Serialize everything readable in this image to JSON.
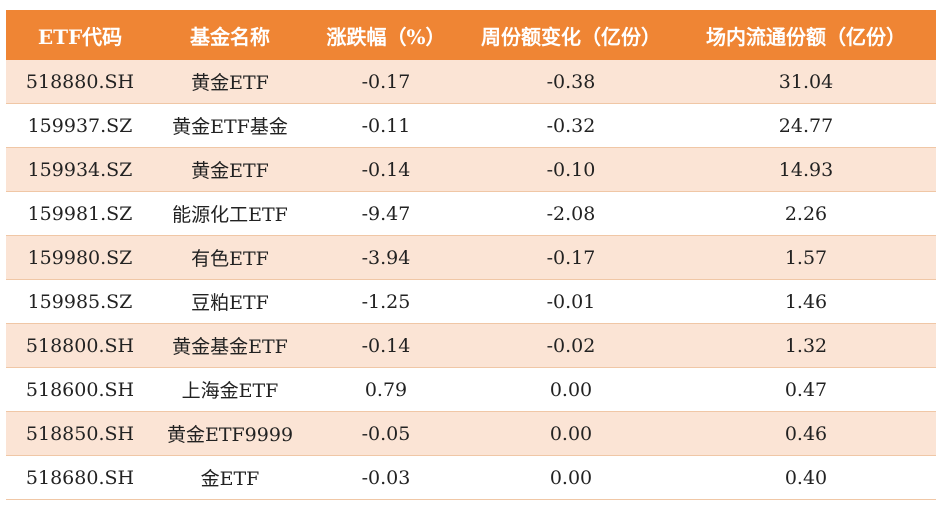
{
  "table": {
    "headers": [
      "ETF代码",
      "基金名称",
      "涨跌幅（%）",
      "周份额变化（亿份）",
      "场内流通份额（亿份）"
    ],
    "rows": [
      [
        "518880.SH",
        "黄金ETF",
        "-0.17",
        "-0.38",
        "31.04"
      ],
      [
        "159937.SZ",
        "黄金ETF基金",
        "-0.11",
        "-0.32",
        "24.77"
      ],
      [
        "159934.SZ",
        "黄金ETF",
        "-0.14",
        "-0.10",
        "14.93"
      ],
      [
        "159981.SZ",
        "能源化工ETF",
        "-9.47",
        "-2.08",
        "2.26"
      ],
      [
        "159980.SZ",
        "有色ETF",
        "-3.94",
        "-0.17",
        "1.57"
      ],
      [
        "159985.SZ",
        "豆粕ETF",
        "-1.25",
        "-0.01",
        "1.46"
      ],
      [
        "518800.SH",
        "黄金基金ETF",
        "-0.14",
        "-0.02",
        "1.32"
      ],
      [
        "518600.SH",
        "上海金ETF",
        "0.79",
        "0.00",
        "0.47"
      ],
      [
        "518850.SH",
        "黄金ETF9999",
        "-0.05",
        "0.00",
        "0.46"
      ],
      [
        "518680.SH",
        "金ETF",
        "-0.03",
        "0.00",
        "0.40"
      ]
    ]
  },
  "colors": {
    "header_bg": "#ef8534",
    "stripe_bg": "#fbe4d5"
  }
}
